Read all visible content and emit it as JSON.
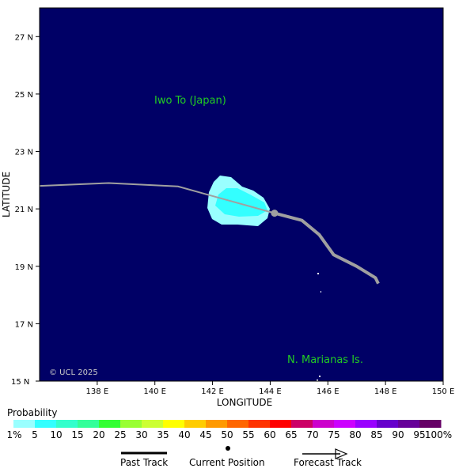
{
  "map": {
    "lon_range": [
      136,
      150
    ],
    "lat_range": [
      15,
      28
    ],
    "lon_ticks": [
      138,
      140,
      142,
      144,
      146,
      148,
      150
    ],
    "lat_ticks": [
      17,
      19,
      21,
      23,
      25,
      27
    ],
    "lon_tick_labels": [
      "138 E",
      "140 E",
      "142 E",
      "144 E",
      "146 E",
      "148 E",
      "150 E"
    ],
    "lat_tick_labels": [
      "17 N",
      "19 N",
      "21 N",
      "23 N",
      "25 N",
      "27 N"
    ],
    "lon_min_label": "15 N",
    "xlabel": "LONGITUDE",
    "ylabel": "LATITUDE",
    "ocean_color": "#000066",
    "place_labels": {
      "iwo_to": "Iwo To (Japan)",
      "marianas": "N. Marianas Is."
    },
    "place_label_color": "#22cc22",
    "copyright": "© UCL 2025",
    "track": {
      "color": "#a0a0a0",
      "past_points": [
        [
          136.0,
          21.8
        ],
        [
          138.4,
          21.9
        ],
        [
          140.8,
          21.78
        ],
        [
          144.15,
          20.85
        ]
      ],
      "current_position": [
        144.15,
        20.85
      ],
      "forecast_points": [
        [
          144.15,
          20.85
        ],
        [
          145.1,
          20.6
        ],
        [
          145.7,
          20.1
        ],
        [
          146.2,
          19.4
        ],
        [
          147.0,
          19.0
        ],
        [
          147.65,
          18.6
        ],
        [
          147.75,
          18.4
        ]
      ]
    },
    "probability_region": {
      "outer_color": "#99ffff",
      "inner_color": "#33ffff"
    }
  },
  "legend": {
    "title": "Probability",
    "labels": [
      "1%",
      "5",
      "10",
      "15",
      "20",
      "25",
      "30",
      "35",
      "40",
      "45",
      "50",
      "55",
      "60",
      "65",
      "70",
      "75",
      "80",
      "85",
      "90",
      "95",
      "100%"
    ],
    "colors": [
      "#99ffff",
      "#33ffff",
      "#33ffcc",
      "#33ff99",
      "#33ff33",
      "#99ff33",
      "#ccff33",
      "#ffff00",
      "#ffcc00",
      "#ff9900",
      "#ff6600",
      "#ff3300",
      "#ff0000",
      "#cc0066",
      "#cc00cc",
      "#cc00ff",
      "#9900ff",
      "#6600cc",
      "#660099",
      "#660066"
    ]
  },
  "track_legend": {
    "past": "Past Track",
    "current": "Current Position",
    "forecast": "Forecast Track"
  }
}
